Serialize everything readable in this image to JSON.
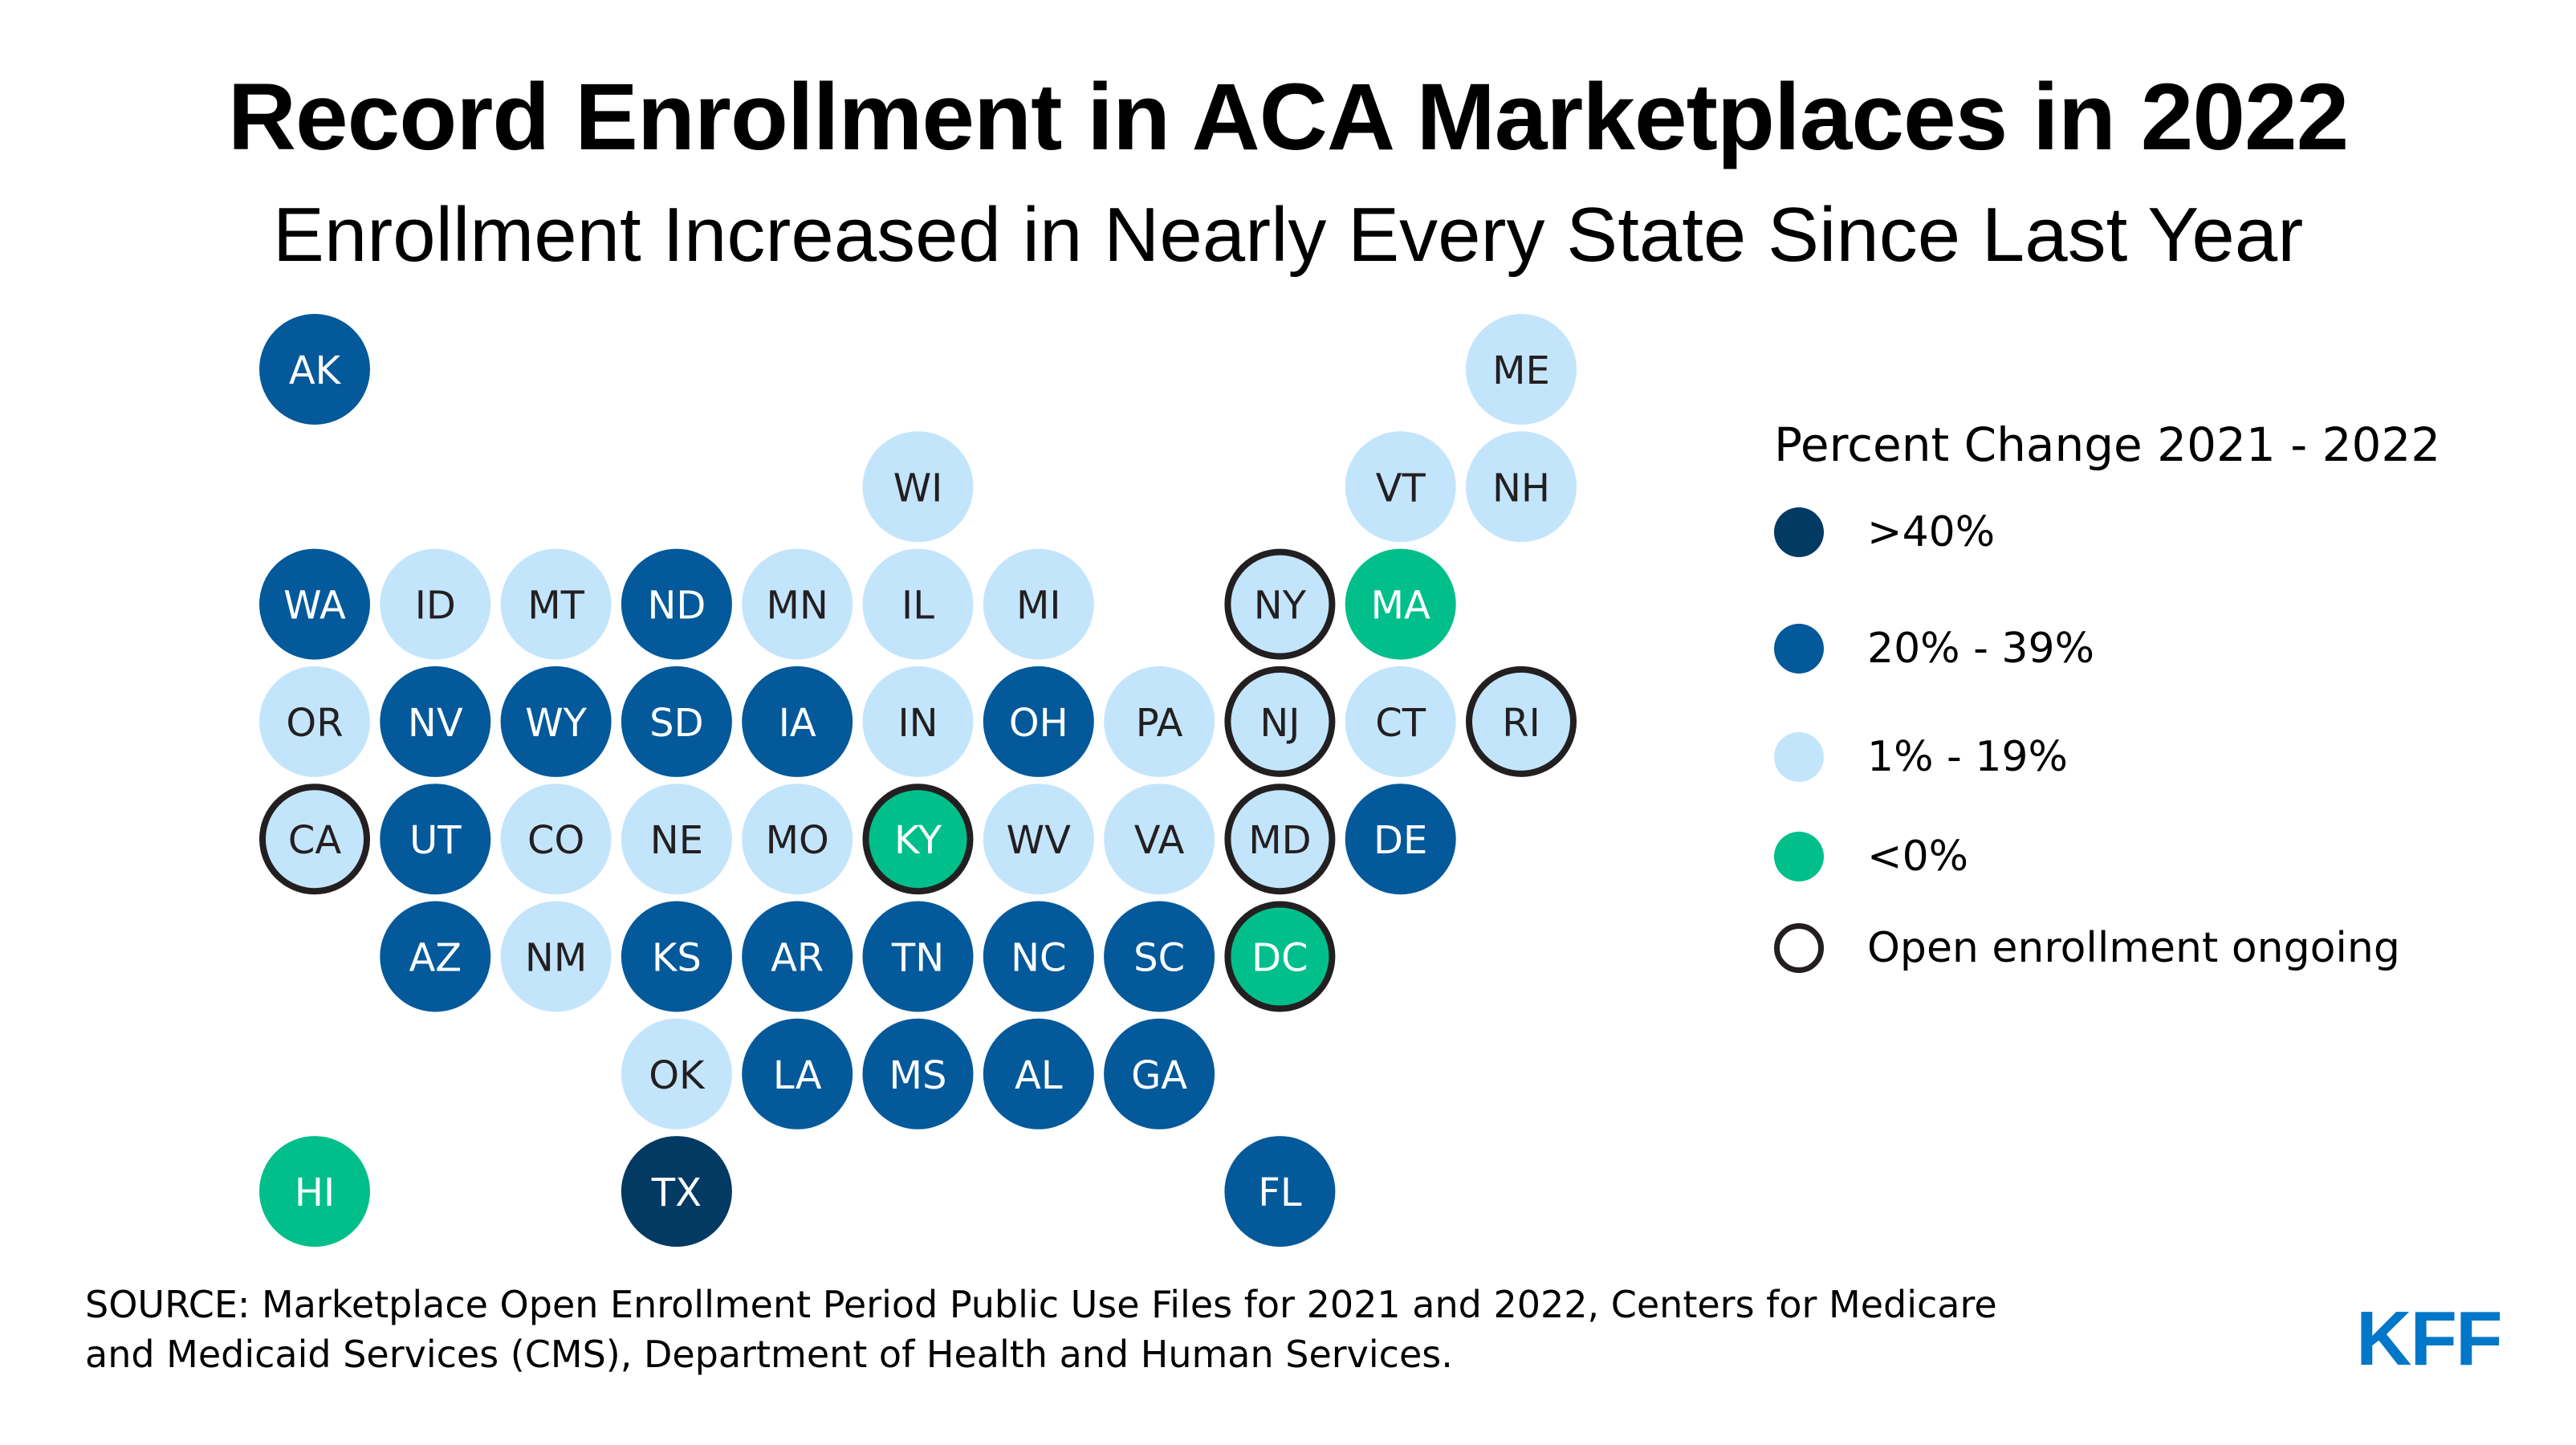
{
  "title": "Record Enrollment in ACA Marketplaces in 2022",
  "subtitle": "Enrollment Increased in Nearly Every State Since Last Year",
  "colors": {
    "gt40": "#033a63",
    "20to39": "#03599a",
    "1to19": "#c3e5fc",
    "lt0": "#00bf8b",
    "ongoing_outline": "#231f20",
    "dark_text": "#231f20",
    "light_text": "#ffffff",
    "logo": "#0077c8"
  },
  "legend": {
    "title": "Percent Change 2021 - 2022",
    "items": [
      {
        "key": "gt40",
        "label": ">40%"
      },
      {
        "key": "20to39",
        "label": "20% - 39%"
      },
      {
        "key": "1to19",
        "label": "1% - 19%"
      },
      {
        "key": "lt0",
        "label": "<0%"
      },
      {
        "key": "ongoing",
        "label": "Open enrollment ongoing"
      }
    ]
  },
  "chart_data": {
    "type": "tile-map",
    "title": "Record Enrollment in ACA Marketplaces in 2022",
    "subtitle": "Enrollment Increased in Nearly Every State Since Last Year",
    "legend_title": "Percent Change 2021 - 2022",
    "categories": [
      ">40%",
      "20% - 39%",
      "1% - 19%",
      "<0%"
    ],
    "legend_placement": "right",
    "states": [
      {
        "abbr": "AK",
        "row": 0,
        "col": 0,
        "category": "20to39",
        "ongoing": false
      },
      {
        "abbr": "ME",
        "row": 0,
        "col": 10,
        "category": "1to19",
        "ongoing": false
      },
      {
        "abbr": "WI",
        "row": 1,
        "col": 5,
        "category": "1to19",
        "ongoing": false
      },
      {
        "abbr": "VT",
        "row": 1,
        "col": 9,
        "category": "1to19",
        "ongoing": false
      },
      {
        "abbr": "NH",
        "row": 1,
        "col": 10,
        "category": "1to19",
        "ongoing": false
      },
      {
        "abbr": "WA",
        "row": 2,
        "col": 0,
        "category": "20to39",
        "ongoing": false
      },
      {
        "abbr": "ID",
        "row": 2,
        "col": 1,
        "category": "1to19",
        "ongoing": false
      },
      {
        "abbr": "MT",
        "row": 2,
        "col": 2,
        "category": "1to19",
        "ongoing": false
      },
      {
        "abbr": "ND",
        "row": 2,
        "col": 3,
        "category": "20to39",
        "ongoing": false
      },
      {
        "abbr": "MN",
        "row": 2,
        "col": 4,
        "category": "1to19",
        "ongoing": false
      },
      {
        "abbr": "IL",
        "row": 2,
        "col": 5,
        "category": "1to19",
        "ongoing": false
      },
      {
        "abbr": "MI",
        "row": 2,
        "col": 6,
        "category": "1to19",
        "ongoing": false
      },
      {
        "abbr": "NY",
        "row": 2,
        "col": 8,
        "category": "1to19",
        "ongoing": true
      },
      {
        "abbr": "MA",
        "row": 2,
        "col": 9,
        "category": "lt0",
        "ongoing": false
      },
      {
        "abbr": "OR",
        "row": 3,
        "col": 0,
        "category": "1to19",
        "ongoing": false
      },
      {
        "abbr": "NV",
        "row": 3,
        "col": 1,
        "category": "20to39",
        "ongoing": false
      },
      {
        "abbr": "WY",
        "row": 3,
        "col": 2,
        "category": "20to39",
        "ongoing": false
      },
      {
        "abbr": "SD",
        "row": 3,
        "col": 3,
        "category": "20to39",
        "ongoing": false
      },
      {
        "abbr": "IA",
        "row": 3,
        "col": 4,
        "category": "20to39",
        "ongoing": false
      },
      {
        "abbr": "IN",
        "row": 3,
        "col": 5,
        "category": "1to19",
        "ongoing": false
      },
      {
        "abbr": "OH",
        "row": 3,
        "col": 6,
        "category": "20to39",
        "ongoing": false
      },
      {
        "abbr": "PA",
        "row": 3,
        "col": 7,
        "category": "1to19",
        "ongoing": false
      },
      {
        "abbr": "NJ",
        "row": 3,
        "col": 8,
        "category": "1to19",
        "ongoing": true
      },
      {
        "abbr": "CT",
        "row": 3,
        "col": 9,
        "category": "1to19",
        "ongoing": false
      },
      {
        "abbr": "RI",
        "row": 3,
        "col": 10,
        "category": "1to19",
        "ongoing": true
      },
      {
        "abbr": "CA",
        "row": 4,
        "col": 0,
        "category": "1to19",
        "ongoing": true
      },
      {
        "abbr": "UT",
        "row": 4,
        "col": 1,
        "category": "20to39",
        "ongoing": false
      },
      {
        "abbr": "CO",
        "row": 4,
        "col": 2,
        "category": "1to19",
        "ongoing": false
      },
      {
        "abbr": "NE",
        "row": 4,
        "col": 3,
        "category": "1to19",
        "ongoing": false
      },
      {
        "abbr": "MO",
        "row": 4,
        "col": 4,
        "category": "1to19",
        "ongoing": false
      },
      {
        "abbr": "KY",
        "row": 4,
        "col": 5,
        "category": "lt0",
        "ongoing": true
      },
      {
        "abbr": "WV",
        "row": 4,
        "col": 6,
        "category": "1to19",
        "ongoing": false
      },
      {
        "abbr": "VA",
        "row": 4,
        "col": 7,
        "category": "1to19",
        "ongoing": false
      },
      {
        "abbr": "MD",
        "row": 4,
        "col": 8,
        "category": "1to19",
        "ongoing": true
      },
      {
        "abbr": "DE",
        "row": 4,
        "col": 9,
        "category": "20to39",
        "ongoing": false
      },
      {
        "abbr": "AZ",
        "row": 5,
        "col": 1,
        "category": "20to39",
        "ongoing": false
      },
      {
        "abbr": "NM",
        "row": 5,
        "col": 2,
        "category": "1to19",
        "ongoing": false
      },
      {
        "abbr": "KS",
        "row": 5,
        "col": 3,
        "category": "20to39",
        "ongoing": false
      },
      {
        "abbr": "AR",
        "row": 5,
        "col": 4,
        "category": "20to39",
        "ongoing": false
      },
      {
        "abbr": "TN",
        "row": 5,
        "col": 5,
        "category": "20to39",
        "ongoing": false
      },
      {
        "abbr": "NC",
        "row": 5,
        "col": 6,
        "category": "20to39",
        "ongoing": false
      },
      {
        "abbr": "SC",
        "row": 5,
        "col": 7,
        "category": "20to39",
        "ongoing": false
      },
      {
        "abbr": "DC",
        "row": 5,
        "col": 8,
        "category": "lt0",
        "ongoing": true
      },
      {
        "abbr": "OK",
        "row": 6,
        "col": 3,
        "category": "1to19",
        "ongoing": false
      },
      {
        "abbr": "LA",
        "row": 6,
        "col": 4,
        "category": "20to39",
        "ongoing": false
      },
      {
        "abbr": "MS",
        "row": 6,
        "col": 5,
        "category": "20to39",
        "ongoing": false
      },
      {
        "abbr": "AL",
        "row": 6,
        "col": 6,
        "category": "20to39",
        "ongoing": false
      },
      {
        "abbr": "GA",
        "row": 6,
        "col": 7,
        "category": "20to39",
        "ongoing": false
      },
      {
        "abbr": "HI",
        "row": 7,
        "col": 0,
        "category": "lt0",
        "ongoing": false
      },
      {
        "abbr": "TX",
        "row": 7,
        "col": 3,
        "category": "gt40",
        "ongoing": false
      },
      {
        "abbr": "FL",
        "row": 7,
        "col": 8,
        "category": "20to39",
        "ongoing": false
      }
    ]
  },
  "footer": {
    "source_line1": "SOURCE: Marketplace Open Enrollment Period Public Use Files for 2021 and 2022, Centers for Medicare",
    "source_line2": "and Medicaid Services (CMS), Department of Health and Human Services.",
    "logo_text": "KFF"
  }
}
